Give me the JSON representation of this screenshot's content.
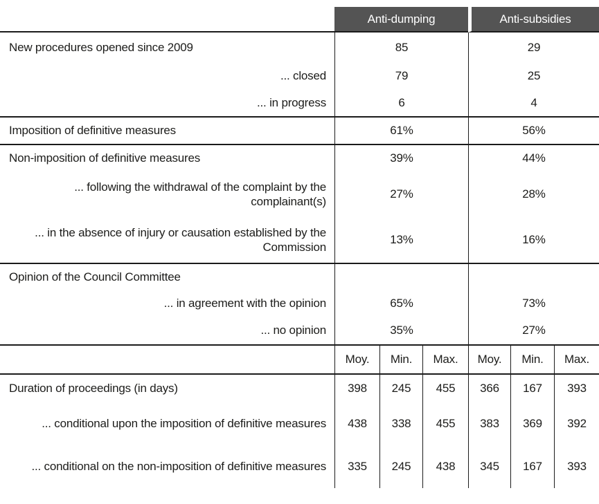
{
  "colors": {
    "header_background": "#545454",
    "header_text": "#ffffff",
    "body_text": "#1c1c1a",
    "rule_line": "#1a1a1a",
    "page_background": "#ffffff"
  },
  "table": {
    "column_groups": [
      {
        "label": "Anti-dumping"
      },
      {
        "label": "Anti-subsidies"
      }
    ],
    "rows": [
      {
        "label": "New procedures opened since 2009",
        "anti_dumping": "85",
        "anti_subsidies": "29"
      },
      {
        "label": "... closed",
        "anti_dumping": "79",
        "anti_subsidies": "25"
      },
      {
        "label": "... in progress",
        "anti_dumping": "6",
        "anti_subsidies": "4"
      },
      {
        "label": "Imposition of definitive measures",
        "anti_dumping": "61%",
        "anti_subsidies": "56%"
      },
      {
        "label": "Non-imposition of definitive measures",
        "anti_dumping": "39%",
        "anti_subsidies": "44%"
      },
      {
        "label": "... following the withdrawal of the complaint by the complainant(s)",
        "anti_dumping": "27%",
        "anti_subsidies": "28%"
      },
      {
        "label": "... in the absence of injury or causation established by the Commission",
        "anti_dumping": "13%",
        "anti_subsidies": "16%"
      },
      {
        "label": "Opinion of the Council Committee",
        "anti_dumping": "",
        "anti_subsidies": ""
      },
      {
        "label": "... in agreement with the opinion",
        "anti_dumping": "65%",
        "anti_subsidies": "73%"
      },
      {
        "label": "... no opinion",
        "anti_dumping": "35%",
        "anti_subsidies": "27%"
      }
    ],
    "sub_headers": [
      "Moy.",
      "Min.",
      "Max.",
      "Moy.",
      "Min.",
      "Max."
    ],
    "duration_rows": [
      {
        "label": "Duration of proceedings (in days)",
        "values": [
          "398",
          "245",
          "455",
          "366",
          "167",
          "393"
        ]
      },
      {
        "label": "... conditional upon the imposition of definitive measures",
        "values": [
          "438",
          "338",
          "455",
          "383",
          "369",
          "392"
        ]
      },
      {
        "label": "... conditional on the non-imposition of definitive measures",
        "values": [
          "335",
          "245",
          "438",
          "345",
          "167",
          "393"
        ]
      }
    ]
  }
}
